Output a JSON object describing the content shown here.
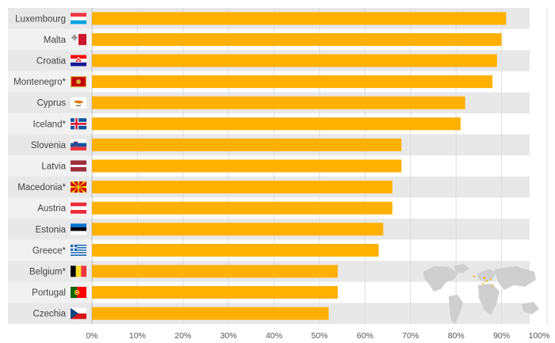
{
  "chart_data": {
    "type": "bar",
    "orientation": "horizontal",
    "title": "",
    "xlabel": "",
    "ylabel": "",
    "xlim": [
      0,
      100
    ],
    "x_ticks": [
      "0%",
      "10%",
      "20%",
      "30%",
      "40%",
      "50%",
      "60%",
      "70%",
      "80%",
      "90%",
      "100%"
    ],
    "grid": true,
    "legend": "none",
    "bar_color": "#ffb000",
    "row_band_color": "#e8e8e8",
    "categories": [
      "Luxembourg",
      "Malta",
      "Croatia",
      "Montenegro*",
      "Cyprus",
      "Iceland*",
      "Slovenia",
      "Latvia",
      "Macedonia*",
      "Austria",
      "Estonia",
      "Greece*",
      "Belgium*",
      "Portugal",
      "Czechia"
    ],
    "flags": [
      "luxembourg-flag-icon",
      "malta-flag-icon",
      "croatia-flag-icon",
      "montenegro-flag-icon",
      "cyprus-flag-icon",
      "iceland-flag-icon",
      "slovenia-flag-icon",
      "latvia-flag-icon",
      "macedonia-flag-icon",
      "austria-flag-icon",
      "estonia-flag-icon",
      "greece-flag-icon",
      "belgium-flag-icon",
      "portugal-flag-icon",
      "czechia-flag-icon"
    ],
    "values": [
      91,
      90,
      89,
      88,
      82,
      81,
      68,
      68,
      66,
      66,
      64,
      63,
      54,
      54,
      52
    ],
    "decoration": "world-map-icon"
  }
}
